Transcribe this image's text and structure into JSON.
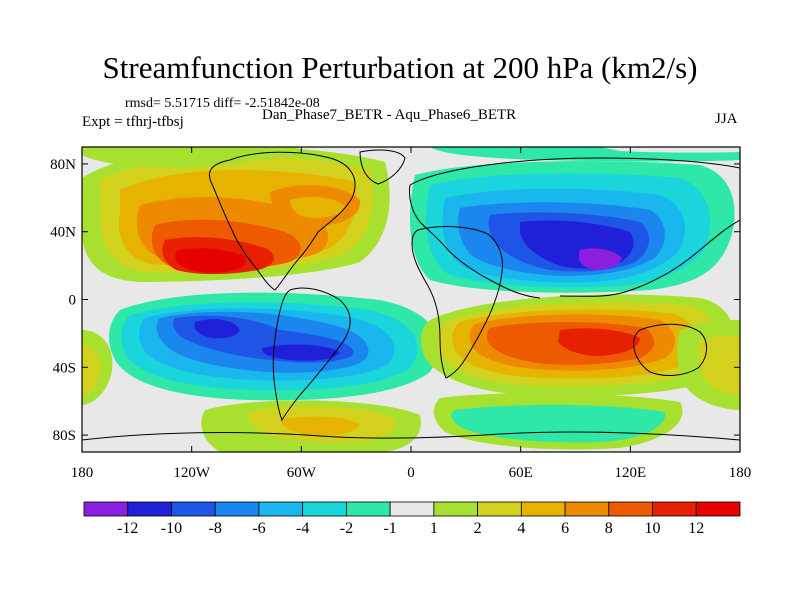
{
  "header": {
    "title": "Streamfunction Perturbation at 200 hPa (km2/s)",
    "stats": "rmsd= 5.51715 diff= -2.51842e-08",
    "comparison": "Dan_Phase7_BETR - Aqu_Phase6_BETR",
    "experiment": "Expt = tfhrj-tfbsj",
    "season": "JJA"
  },
  "chart_data": {
    "type": "heatmap",
    "title": "Streamfunction Perturbation at 200 hPa (km2/s)",
    "subtitle": "Dan_Phase7_BETR - Aqu_Phase6_BETR",
    "units": "km2/s",
    "xlim": [
      -180,
      180
    ],
    "ylim": [
      -90,
      90
    ],
    "x_ticks": [
      {
        "value": -180,
        "label": "180"
      },
      {
        "value": -120,
        "label": "120W"
      },
      {
        "value": -60,
        "label": "60W"
      },
      {
        "value": 0,
        "label": "0"
      },
      {
        "value": 60,
        "label": "60E"
      },
      {
        "value": 120,
        "label": "120E"
      },
      {
        "value": 180,
        "label": "180"
      }
    ],
    "y_ticks": [
      {
        "value": 80,
        "label": "80N"
      },
      {
        "value": 40,
        "label": "40N"
      },
      {
        "value": 0,
        "label": "0"
      },
      {
        "value": -40,
        "label": "40S"
      },
      {
        "value": -80,
        "label": "80S"
      }
    ],
    "contour_levels": [
      -12,
      -10,
      -8,
      -6,
      -4,
      -2,
      -1,
      1,
      2,
      4,
      6,
      8,
      10,
      12
    ],
    "colorbar_labels": [
      "-12",
      "-10",
      "-8",
      "-6",
      "-4",
      "-2",
      "-1",
      "1",
      "2",
      "4",
      "6",
      "8",
      "10",
      "12"
    ],
    "colorbar_colors": [
      "#8a1fe0",
      "#2020d8",
      "#1f55e6",
      "#1a86ee",
      "#1ab6ee",
      "#1ad6dc",
      "#2fe8a8",
      "#e8e8e8",
      "#a8e030",
      "#d2d21e",
      "#e6b400",
      "#ee8a00",
      "#ee5a00",
      "#e62000",
      "#e60000"
    ],
    "features": [
      {
        "name": "north-pacific-high",
        "lon": -128,
        "lat": 18,
        "value": 12
      },
      {
        "name": "north-atlantic-high",
        "lon": -35,
        "lat": 45,
        "value": 6
      },
      {
        "name": "south-pacific-low",
        "lon": -95,
        "lat": -20,
        "value": -10
      },
      {
        "name": "south-atlantic-low",
        "lon": -50,
        "lat": -35,
        "value": -10
      },
      {
        "name": "asian-low",
        "lon": 100,
        "lat": 23,
        "value": -12
      },
      {
        "name": "north-atlantic-low",
        "lon": 40,
        "lat": 60,
        "value": -4
      },
      {
        "name": "indian-ocean-high",
        "lon": 100,
        "lat": -28,
        "value": 12
      },
      {
        "name": "south-indian-high-west",
        "lon": 50,
        "lat": -30,
        "value": 10
      },
      {
        "name": "southern-ocean-high",
        "lon": -50,
        "lat": -72,
        "value": 6
      },
      {
        "name": "south-pacific-high",
        "lon": 170,
        "lat": -40,
        "value": 6
      }
    ]
  }
}
